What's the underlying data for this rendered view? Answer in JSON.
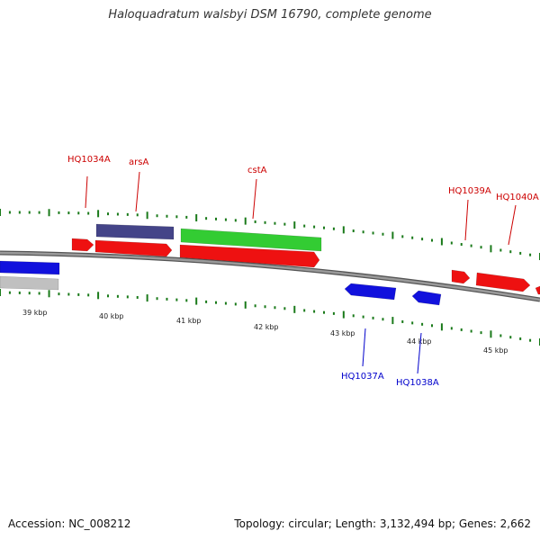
{
  "title": "Haloquadratum walsbyi DSM 16790, complete genome",
  "footer": {
    "accession": "Accession: NC_008212",
    "summary": "Topology: circular; Length: 3,132,494 bp; Genes: 2,662"
  },
  "colors": {
    "backbone": "#808080",
    "tick": "#1a7a1a",
    "label_forward": "#cc0000",
    "label_reverse": "#0000cc"
  },
  "scale": {
    "labels": [
      "39 kbp",
      "40 kbp",
      "41 kbp",
      "42 kbp",
      "43 kbp",
      "44 kbp",
      "45 kbp"
    ]
  },
  "genes": [
    {
      "id": "g-blue-left",
      "color": "#1111dd",
      "label": ""
    },
    {
      "id": "g-gray-left",
      "color": "#c0c0c0",
      "label": ""
    },
    {
      "id": "g-hq1034a",
      "color": "#ee1111",
      "label": "HQ1034A"
    },
    {
      "id": "g-arsa",
      "color": "#ee1111",
      "label": "arsA"
    },
    {
      "id": "g-arsa-purple",
      "color": "#444488",
      "label": ""
    },
    {
      "id": "g-csta",
      "color": "#ee1111",
      "label": "cstA"
    },
    {
      "id": "g-csta-green",
      "color": "#33cc33",
      "label": ""
    },
    {
      "id": "g-hq1037a",
      "color": "#1111dd",
      "label": "HQ1037A"
    },
    {
      "id": "g-hq1038a",
      "color": "#1111dd",
      "label": "HQ1038A"
    },
    {
      "id": "g-hq1039a",
      "color": "#ee1111",
      "label": "HQ1039A"
    },
    {
      "id": "g-hq1040a",
      "color": "#ee1111",
      "label": "HQ1040A"
    },
    {
      "id": "g-red-right",
      "color": "#ee1111",
      "label": ""
    }
  ]
}
